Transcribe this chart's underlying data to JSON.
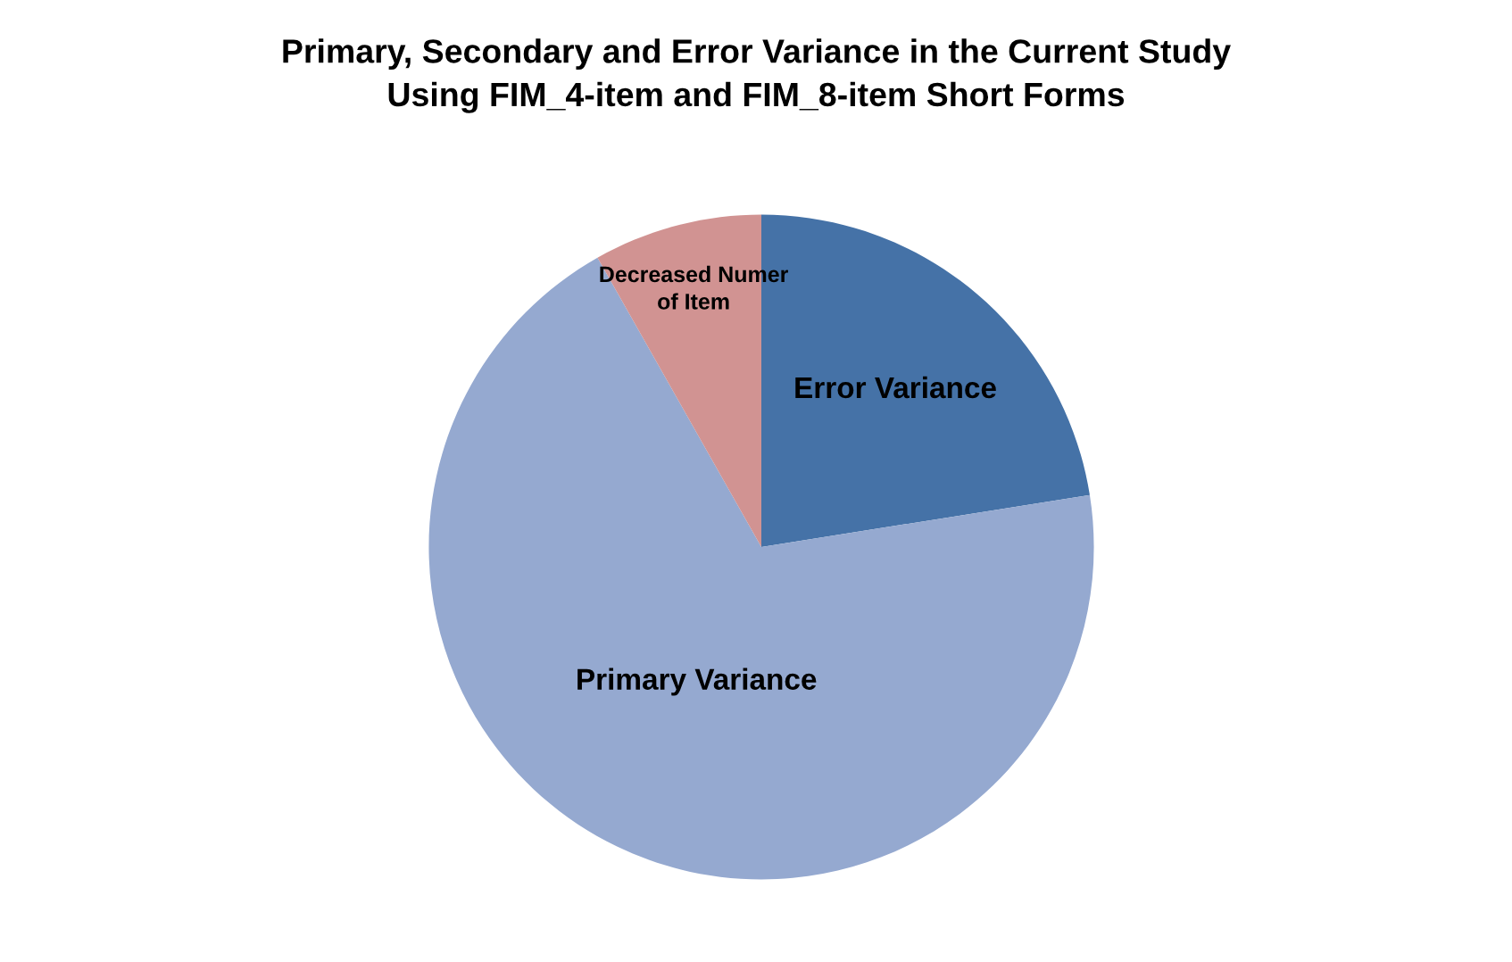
{
  "chart_data": {
    "type": "pie",
    "title": "Primary, Secondary and Error Variance in the Current Study\nUsing FIM_4-item and FIM_8-item Short Forms",
    "categories": [
      "Error Variance",
      "Primary Variance",
      "Decreased Numer\nof Item"
    ],
    "values": [
      22.5,
      69.3,
      8.2
    ],
    "colors": [
      "#4572a7",
      "#95a9d0",
      "#d19392"
    ],
    "legend": false
  }
}
